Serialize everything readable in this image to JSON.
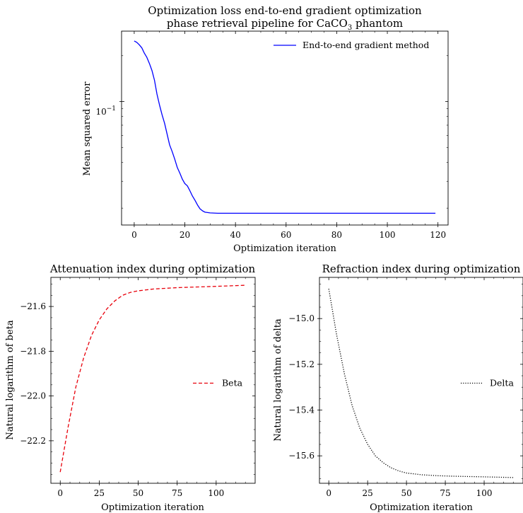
{
  "chart_data": [
    {
      "type": "line",
      "title_line1": "Optimization loss end-to-end gradient optimization",
      "title_line2_pre": "phase retrieval pipeline for CaCO",
      "title_line2_sub": "3",
      "title_line2_post": " phantom",
      "xlabel": "Optimization iteration",
      "ylabel": "Mean squared error",
      "yscale": "log",
      "xlim": [
        -5,
        124
      ],
      "ylim": [
        0.0155,
        0.29
      ],
      "xticks": [
        0,
        20,
        40,
        60,
        80,
        100,
        120
      ],
      "xtick_labels": [
        "0",
        "20",
        "40",
        "60",
        "80",
        "100",
        "120"
      ],
      "ytick_label": {
        "base": "10",
        "exp": "−1",
        "value": 0.1
      },
      "legend_position": "top-right",
      "grid": false,
      "series": [
        {
          "name": "End-to-end gradient method",
          "color": "#0000ff",
          "style": "solid",
          "x": [
            0,
            1,
            2,
            3,
            4,
            5,
            6,
            7,
            8,
            9,
            10,
            11,
            12,
            13,
            14,
            15,
            16,
            17,
            18,
            19,
            20,
            21,
            22,
            23,
            24,
            25,
            26,
            27,
            28,
            30,
            33,
            36,
            40,
            50,
            60,
            80,
            100,
            119
          ],
          "y": [
            0.25,
            0.245,
            0.236,
            0.225,
            0.208,
            0.195,
            0.178,
            0.16,
            0.138,
            0.112,
            0.095,
            0.082,
            0.072,
            0.061,
            0.052,
            0.047,
            0.042,
            0.037,
            0.034,
            0.031,
            0.029,
            0.028,
            0.026,
            0.024,
            0.0225,
            0.021,
            0.0198,
            0.0192,
            0.0188,
            0.0186,
            0.0185,
            0.0185,
            0.0185,
            0.0185,
            0.0185,
            0.0185,
            0.0185,
            0.0185
          ]
        }
      ]
    },
    {
      "type": "line",
      "title": "Attenuation index during optimization",
      "xlabel": "Optimization iteration",
      "ylabel": "Natural logarithm of beta",
      "xlim": [
        -6,
        125
      ],
      "ylim": [
        -22.39,
        -21.47
      ],
      "xticks": [
        0,
        25,
        50,
        75,
        100
      ],
      "xtick_labels": [
        "0",
        "25",
        "50",
        "75",
        "100"
      ],
      "yticks": [
        -22.2,
        -22.0,
        -21.8,
        -21.6
      ],
      "ytick_labels": [
        "−22.2",
        "−22.0",
        "−21.8",
        "−21.6"
      ],
      "legend_position": "center-right",
      "grid": false,
      "series": [
        {
          "name": "Beta",
          "color": "#e8000b",
          "style": "dashed",
          "x": [
            0,
            5,
            10,
            15,
            20,
            25,
            30,
            35,
            40,
            45,
            50,
            60,
            75,
            100,
            119
          ],
          "y": [
            -22.34,
            -22.14,
            -21.96,
            -21.83,
            -21.73,
            -21.66,
            -21.61,
            -21.575,
            -21.55,
            -21.537,
            -21.53,
            -21.522,
            -21.516,
            -21.51,
            -21.505
          ]
        }
      ]
    },
    {
      "type": "line",
      "title": "Refraction index during optimization",
      "xlabel": "Optimization iteration",
      "ylabel": "Natural logarithm of delta",
      "xlim": [
        -6,
        125
      ],
      "ylim": [
        -15.72,
        -14.82
      ],
      "xticks": [
        0,
        25,
        50,
        75,
        100
      ],
      "xtick_labels": [
        "0",
        "25",
        "50",
        "75",
        "100"
      ],
      "yticks": [
        -15.6,
        -15.4,
        -15.2,
        -15.0
      ],
      "ytick_labels": [
        "−15.6",
        "−15.4",
        "−15.2",
        "−15.0"
      ],
      "legend_position": "center-right",
      "grid": false,
      "series": [
        {
          "name": "Delta",
          "color": "#000000",
          "style": "dotted",
          "x": [
            0,
            5,
            10,
            15,
            20,
            25,
            30,
            35,
            40,
            45,
            50,
            60,
            70,
            80,
            100,
            119
          ],
          "y": [
            -14.87,
            -15.07,
            -15.24,
            -15.38,
            -15.48,
            -15.55,
            -15.6,
            -15.63,
            -15.652,
            -15.666,
            -15.675,
            -15.683,
            -15.687,
            -15.689,
            -15.692,
            -15.695
          ]
        }
      ]
    }
  ]
}
